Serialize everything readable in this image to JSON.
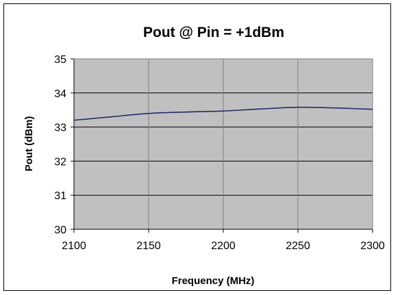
{
  "chart_data": {
    "type": "line",
    "title": "Pout @ Pin = +1dBm",
    "xlabel": "Frequency (MHz)",
    "ylabel": "Pout (dBm)",
    "xlim": [
      2100,
      2300
    ],
    "ylim": [
      30,
      35
    ],
    "x_ticks": [
      2100,
      2150,
      2200,
      2250,
      2300
    ],
    "y_ticks": [
      30,
      31,
      32,
      33,
      34,
      35
    ],
    "x_tick_labels": [
      "2100",
      "2150",
      "2200",
      "2250",
      "2300"
    ],
    "y_tick_labels": [
      "30",
      "31",
      "32",
      "33",
      "34",
      "35"
    ],
    "grid": true,
    "legend": "none",
    "series": [
      {
        "x": [
          2100,
          2125,
          2150,
          2175,
          2200,
          2225,
          2250,
          2275,
          2300
        ],
        "y": [
          33.2,
          33.3,
          33.4,
          33.44,
          33.47,
          33.53,
          33.58,
          33.56,
          33.52
        ],
        "color": "#1f2a6b"
      }
    ],
    "plot_background": "#c0c0c0",
    "gridline_color": "#808080"
  }
}
